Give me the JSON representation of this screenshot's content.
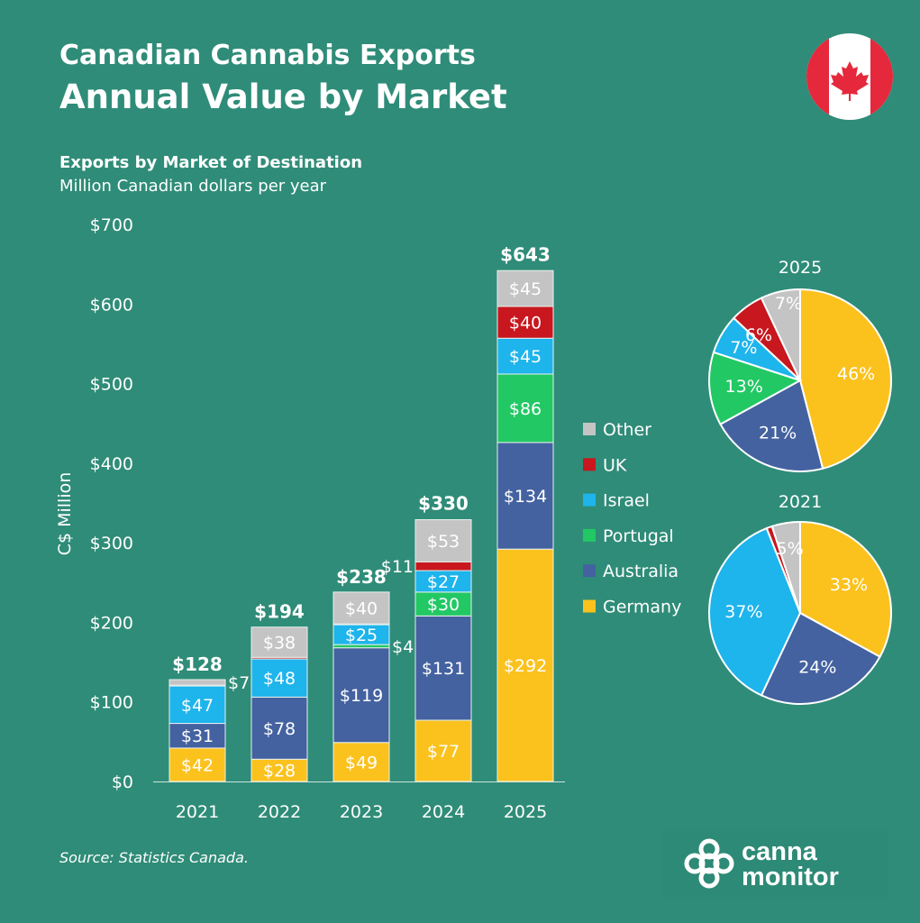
{
  "header": {
    "title": "Canadian Cannabis Exports",
    "subtitle": "Annual Value by Market",
    "flag_icon": "canada-flag-icon"
  },
  "chart_title": "Exports by Market of Destination",
  "chart_subtitle": "Million Canadian dollars per year",
  "source": "Source: Statistics Canada.",
  "logo": {
    "line1": "canna",
    "line2": "monitor"
  },
  "chart_data": [
    {
      "type": "bar",
      "stacked": true,
      "categories": [
        "2021",
        "2022",
        "2023",
        "2024",
        "2025"
      ],
      "ylabel": "C$ Million",
      "ylim": [
        0,
        700
      ],
      "yticks": [
        "$0",
        "$100",
        "$200",
        "$300",
        "$400",
        "$500",
        "$600",
        "$700"
      ],
      "ytick_values": [
        0,
        100,
        200,
        300,
        400,
        500,
        600,
        700
      ],
      "grid": false,
      "legend_placement": "right",
      "totals": [
        128,
        194,
        238,
        330,
        643
      ],
      "total_labels": [
        "$128",
        "$194",
        "$238",
        "$330",
        "$643"
      ],
      "series": [
        {
          "name": "Germany",
          "color": "#fbc21e",
          "values": [
            42,
            28,
            49,
            77,
            292
          ],
          "labels": [
            "$42",
            "$28",
            "$49",
            "$77",
            "$292"
          ]
        },
        {
          "name": "Australia",
          "color": "#4462a0",
          "values": [
            31,
            78,
            119,
            131,
            134
          ],
          "labels": [
            "$31",
            "$78",
            "$119",
            "$131",
            "$134"
          ]
        },
        {
          "name": "Portugal",
          "color": "#22c864",
          "values": [
            0,
            0,
            4,
            30,
            86
          ],
          "labels": [
            "",
            "",
            "$4",
            "$30",
            "$86"
          ]
        },
        {
          "name": "Israel",
          "color": "#1eb4ec",
          "values": [
            47,
            48,
            25,
            27,
            45
          ],
          "labels": [
            "$47",
            "$48",
            "$25",
            "$27",
            "$45"
          ]
        },
        {
          "name": "UK",
          "color": "#c8171e",
          "values": [
            1,
            2,
            1,
            11,
            40
          ],
          "labels": [
            "",
            "",
            "",
            "$11",
            "$40"
          ]
        },
        {
          "name": "Other",
          "color": "#c4c4c4",
          "values": [
            7,
            38,
            40,
            53,
            45
          ],
          "labels": [
            "$7",
            "$38",
            "$40",
            "$53",
            "$45"
          ]
        }
      ],
      "legend": [
        "Other",
        "UK",
        "Israel",
        "Portugal",
        "Australia",
        "Germany"
      ]
    },
    {
      "type": "pie",
      "title": "2025",
      "slices": [
        {
          "name": "Germany",
          "value": 46,
          "label": "46%"
        },
        {
          "name": "Australia",
          "value": 21,
          "label": "21%"
        },
        {
          "name": "Portugal",
          "value": 13,
          "label": "13%"
        },
        {
          "name": "Israel",
          "value": 7,
          "label": "7%"
        },
        {
          "name": "UK",
          "value": 6,
          "label": "6%"
        },
        {
          "name": "Other",
          "value": 7,
          "label": "7%"
        }
      ]
    },
    {
      "type": "pie",
      "title": "2021",
      "slices": [
        {
          "name": "Germany",
          "value": 33,
          "label": "33%"
        },
        {
          "name": "Australia",
          "value": 24,
          "label": "24%"
        },
        {
          "name": "Portugal",
          "value": 0,
          "label": ""
        },
        {
          "name": "Israel",
          "value": 37,
          "label": "37%"
        },
        {
          "name": "UK",
          "value": 1,
          "label": ""
        },
        {
          "name": "Other",
          "value": 5,
          "label": "5%"
        }
      ]
    }
  ]
}
